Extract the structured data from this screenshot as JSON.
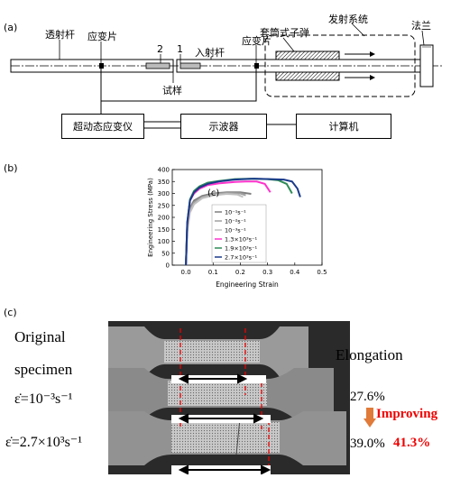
{
  "panel_a": {
    "letter": "(a)",
    "labels": {
      "transmission_bar": "透射杆",
      "strain_gauge_left": "应变片",
      "num_2": "2",
      "num_1": "1",
      "incident_bar": "入射杆",
      "strain_gauge_right": "应变片",
      "projectile": "套筒式子弹",
      "launch_system": "发射系统",
      "flange": "法兰",
      "specimen": "试样"
    },
    "boxes": {
      "amplifier": "超动态应变仪",
      "oscilloscope": "示波器",
      "computer": "计算机"
    }
  },
  "panel_b": {
    "letter": "(b)",
    "inset_label": "(c)",
    "chart_data": {
      "type": "line",
      "xlabel": "Engineering Strain",
      "ylabel": "Engineering Stress (MPa)",
      "xlim": [
        -0.05,
        0.5
      ],
      "ylim": [
        0,
        400
      ],
      "xticks": [
        "0.0",
        "0.1",
        "0.2",
        "0.3",
        "0.4",
        "0.5"
      ],
      "yticks": [
        "0",
        "50",
        "100",
        "150",
        "200",
        "250",
        "300",
        "350",
        "400"
      ],
      "legend_position": "inside lower right",
      "series": [
        {
          "name": "10⁻¹s⁻¹",
          "color": "#7f7f7f",
          "x": [
            0,
            0.005,
            0.015,
            0.03,
            0.06,
            0.1,
            0.15,
            0.2,
            0.24
          ],
          "y": [
            0,
            160,
            240,
            270,
            290,
            300,
            305,
            305,
            298
          ]
        },
        {
          "name": "10⁻²s⁻¹",
          "color": "#a0a0a0",
          "x": [
            0,
            0.005,
            0.015,
            0.03,
            0.06,
            0.1,
            0.15,
            0.2,
            0.22
          ],
          "y": [
            0,
            150,
            230,
            262,
            285,
            296,
            302,
            300,
            292
          ]
        },
        {
          "name": "10⁻³s⁻¹",
          "color": "#c0c0c0",
          "x": [
            0,
            0.005,
            0.015,
            0.03,
            0.06,
            0.1,
            0.15,
            0.19,
            0.21
          ],
          "y": [
            0,
            140,
            220,
            255,
            280,
            292,
            298,
            295,
            285
          ]
        },
        {
          "name": "1.3×10³s⁻¹",
          "color": "#ff33cc",
          "x": [
            0,
            0.005,
            0.015,
            0.03,
            0.05,
            0.08,
            0.12,
            0.18,
            0.22,
            0.26,
            0.29,
            0.31
          ],
          "y": [
            0,
            170,
            270,
            300,
            320,
            335,
            342,
            348,
            350,
            350,
            340,
            305
          ]
        },
        {
          "name": "1.9×10³s⁻¹",
          "color": "#2e8b57",
          "x": [
            0,
            0.005,
            0.015,
            0.03,
            0.05,
            0.08,
            0.12,
            0.18,
            0.24,
            0.3,
            0.34,
            0.37,
            0.39
          ],
          "y": [
            0,
            175,
            275,
            310,
            330,
            345,
            352,
            360,
            362,
            360,
            355,
            340,
            300
          ]
        },
        {
          "name": "2.7×10³s⁻¹",
          "color": "#1a3a8a",
          "x": [
            0,
            0.005,
            0.015,
            0.03,
            0.05,
            0.08,
            0.12,
            0.18,
            0.25,
            0.31,
            0.36,
            0.39,
            0.41,
            0.42
          ],
          "y": [
            0,
            180,
            270,
            305,
            325,
            340,
            350,
            358,
            362,
            360,
            358,
            350,
            320,
            285
          ]
        }
      ]
    }
  },
  "panel_c": {
    "letter": "(c)",
    "original": "Original",
    "specimen": "specimen",
    "rate_low": "ε̇=10⁻³s⁻¹",
    "rate_high": "ε̇=2.7×10³s⁻¹",
    "elongation_title": "Elongation",
    "elong_low": "27.6%",
    "improving": "Improving",
    "elong_high": "39.0%",
    "improve_pct": "41.3%"
  }
}
